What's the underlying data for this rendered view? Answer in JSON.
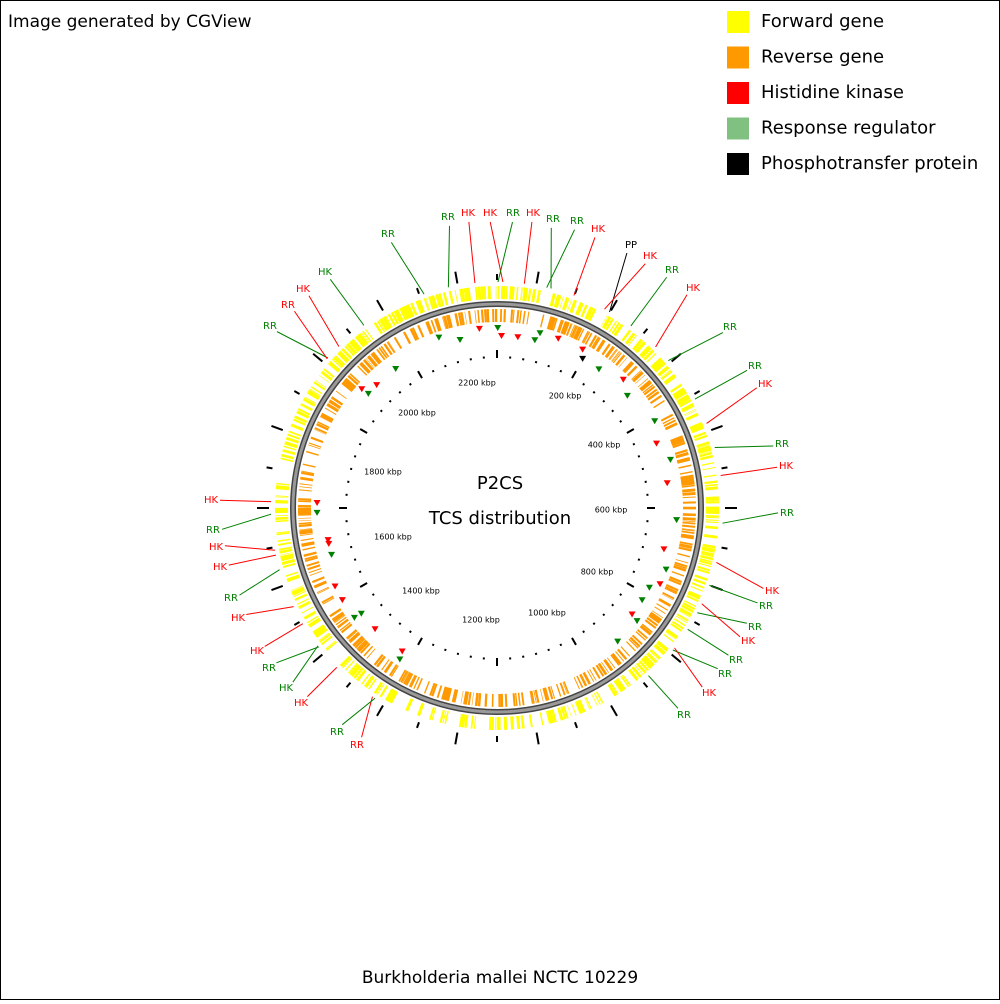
{
  "header": {
    "credit": "Image generated by CGView"
  },
  "legend": [
    {
      "label": "Forward gene",
      "color": "#ffff00"
    },
    {
      "label": "Reverse gene",
      "color": "#ff9900"
    },
    {
      "label": "Histidine kinase",
      "color": "#ff0000"
    },
    {
      "label": "Response regulator",
      "color": "#80c080"
    },
    {
      "label": "Phosphotransfer protein",
      "color": "#000000"
    }
  ],
  "center": {
    "title": "P2CS",
    "subtitle": "TCS distribution"
  },
  "scale": {
    "ticks": [
      "200 kbp",
      "400 kbp",
      "600 kbp",
      "800 kbp",
      "1000 kbp",
      "1200 kbp",
      "1400 kbp",
      "1600 kbp",
      "1800 kbp",
      "2000 kbp",
      "2200 kbp"
    ]
  },
  "features": [
    "RR",
    "HK",
    "HK",
    "RR",
    "HK",
    "RR",
    "RR",
    "HK",
    "PP",
    "HK",
    "RR",
    "HK",
    "RR",
    "RR",
    "HK",
    "RR",
    "HK",
    "RR",
    "HK",
    "RR",
    "RR",
    "HK",
    "RR",
    "RR",
    "HK",
    "RR",
    "RR",
    "RR",
    "HK",
    "HK",
    "RR",
    "HK",
    "RR",
    "HK",
    "HK",
    "RR",
    "HK",
    "HK",
    "RR",
    "RR",
    "HK",
    "RR",
    "HK"
  ],
  "footer": {
    "caption": "Burkholderia mallei NCTC 10229"
  }
}
